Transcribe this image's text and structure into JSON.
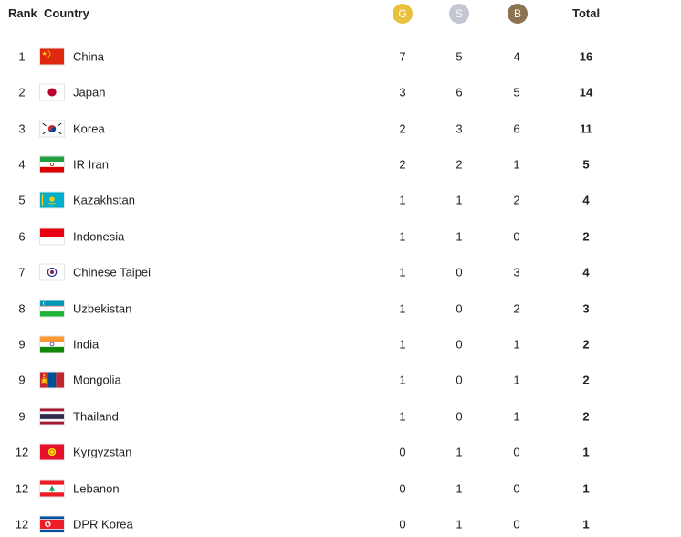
{
  "header": {
    "rank_label": "Rank",
    "country_label": "Country",
    "gold_label": "G",
    "silver_label": "S",
    "bronze_label": "B",
    "total_label": "Total",
    "gold_color": "#e8c13f",
    "silver_color": "#c3c5d1",
    "bronze_color": "#8d7450"
  },
  "rows": [
    {
      "rank": "1",
      "country": "China",
      "flag": "china-flag-icon",
      "gold": "7",
      "silver": "5",
      "bronze": "4",
      "total": "16"
    },
    {
      "rank": "2",
      "country": "Japan",
      "flag": "japan-flag-icon",
      "gold": "3",
      "silver": "6",
      "bronze": "5",
      "total": "14"
    },
    {
      "rank": "3",
      "country": "Korea",
      "flag": "korea-flag-icon",
      "gold": "2",
      "silver": "3",
      "bronze": "6",
      "total": "11"
    },
    {
      "rank": "4",
      "country": "IR Iran",
      "flag": "iran-flag-icon",
      "gold": "2",
      "silver": "2",
      "bronze": "1",
      "total": "5"
    },
    {
      "rank": "5",
      "country": "Kazakhstan",
      "flag": "kazakhstan-flag-icon",
      "gold": "1",
      "silver": "1",
      "bronze": "2",
      "total": "4"
    },
    {
      "rank": "6",
      "country": "Indonesia",
      "flag": "indonesia-flag-icon",
      "gold": "1",
      "silver": "1",
      "bronze": "0",
      "total": "2"
    },
    {
      "rank": "7",
      "country": "Chinese Taipei",
      "flag": "chinese-taipei-flag-icon",
      "gold": "1",
      "silver": "0",
      "bronze": "3",
      "total": "4"
    },
    {
      "rank": "8",
      "country": "Uzbekistan",
      "flag": "uzbekistan-flag-icon",
      "gold": "1",
      "silver": "0",
      "bronze": "2",
      "total": "3"
    },
    {
      "rank": "9",
      "country": "India",
      "flag": "india-flag-icon",
      "gold": "1",
      "silver": "0",
      "bronze": "1",
      "total": "2"
    },
    {
      "rank": "9",
      "country": "Mongolia",
      "flag": "mongolia-flag-icon",
      "gold": "1",
      "silver": "0",
      "bronze": "1",
      "total": "2"
    },
    {
      "rank": "9",
      "country": "Thailand",
      "flag": "thailand-flag-icon",
      "gold": "1",
      "silver": "0",
      "bronze": "1",
      "total": "2"
    },
    {
      "rank": "12",
      "country": "Kyrgyzstan",
      "flag": "kyrgyzstan-flag-icon",
      "gold": "0",
      "silver": "1",
      "bronze": "0",
      "total": "1"
    },
    {
      "rank": "12",
      "country": "Lebanon",
      "flag": "lebanon-flag-icon",
      "gold": "0",
      "silver": "1",
      "bronze": "0",
      "total": "1"
    },
    {
      "rank": "12",
      "country": "DPR Korea",
      "flag": "dpr-korea-flag-icon",
      "gold": "0",
      "silver": "1",
      "bronze": "0",
      "total": "1"
    }
  ]
}
